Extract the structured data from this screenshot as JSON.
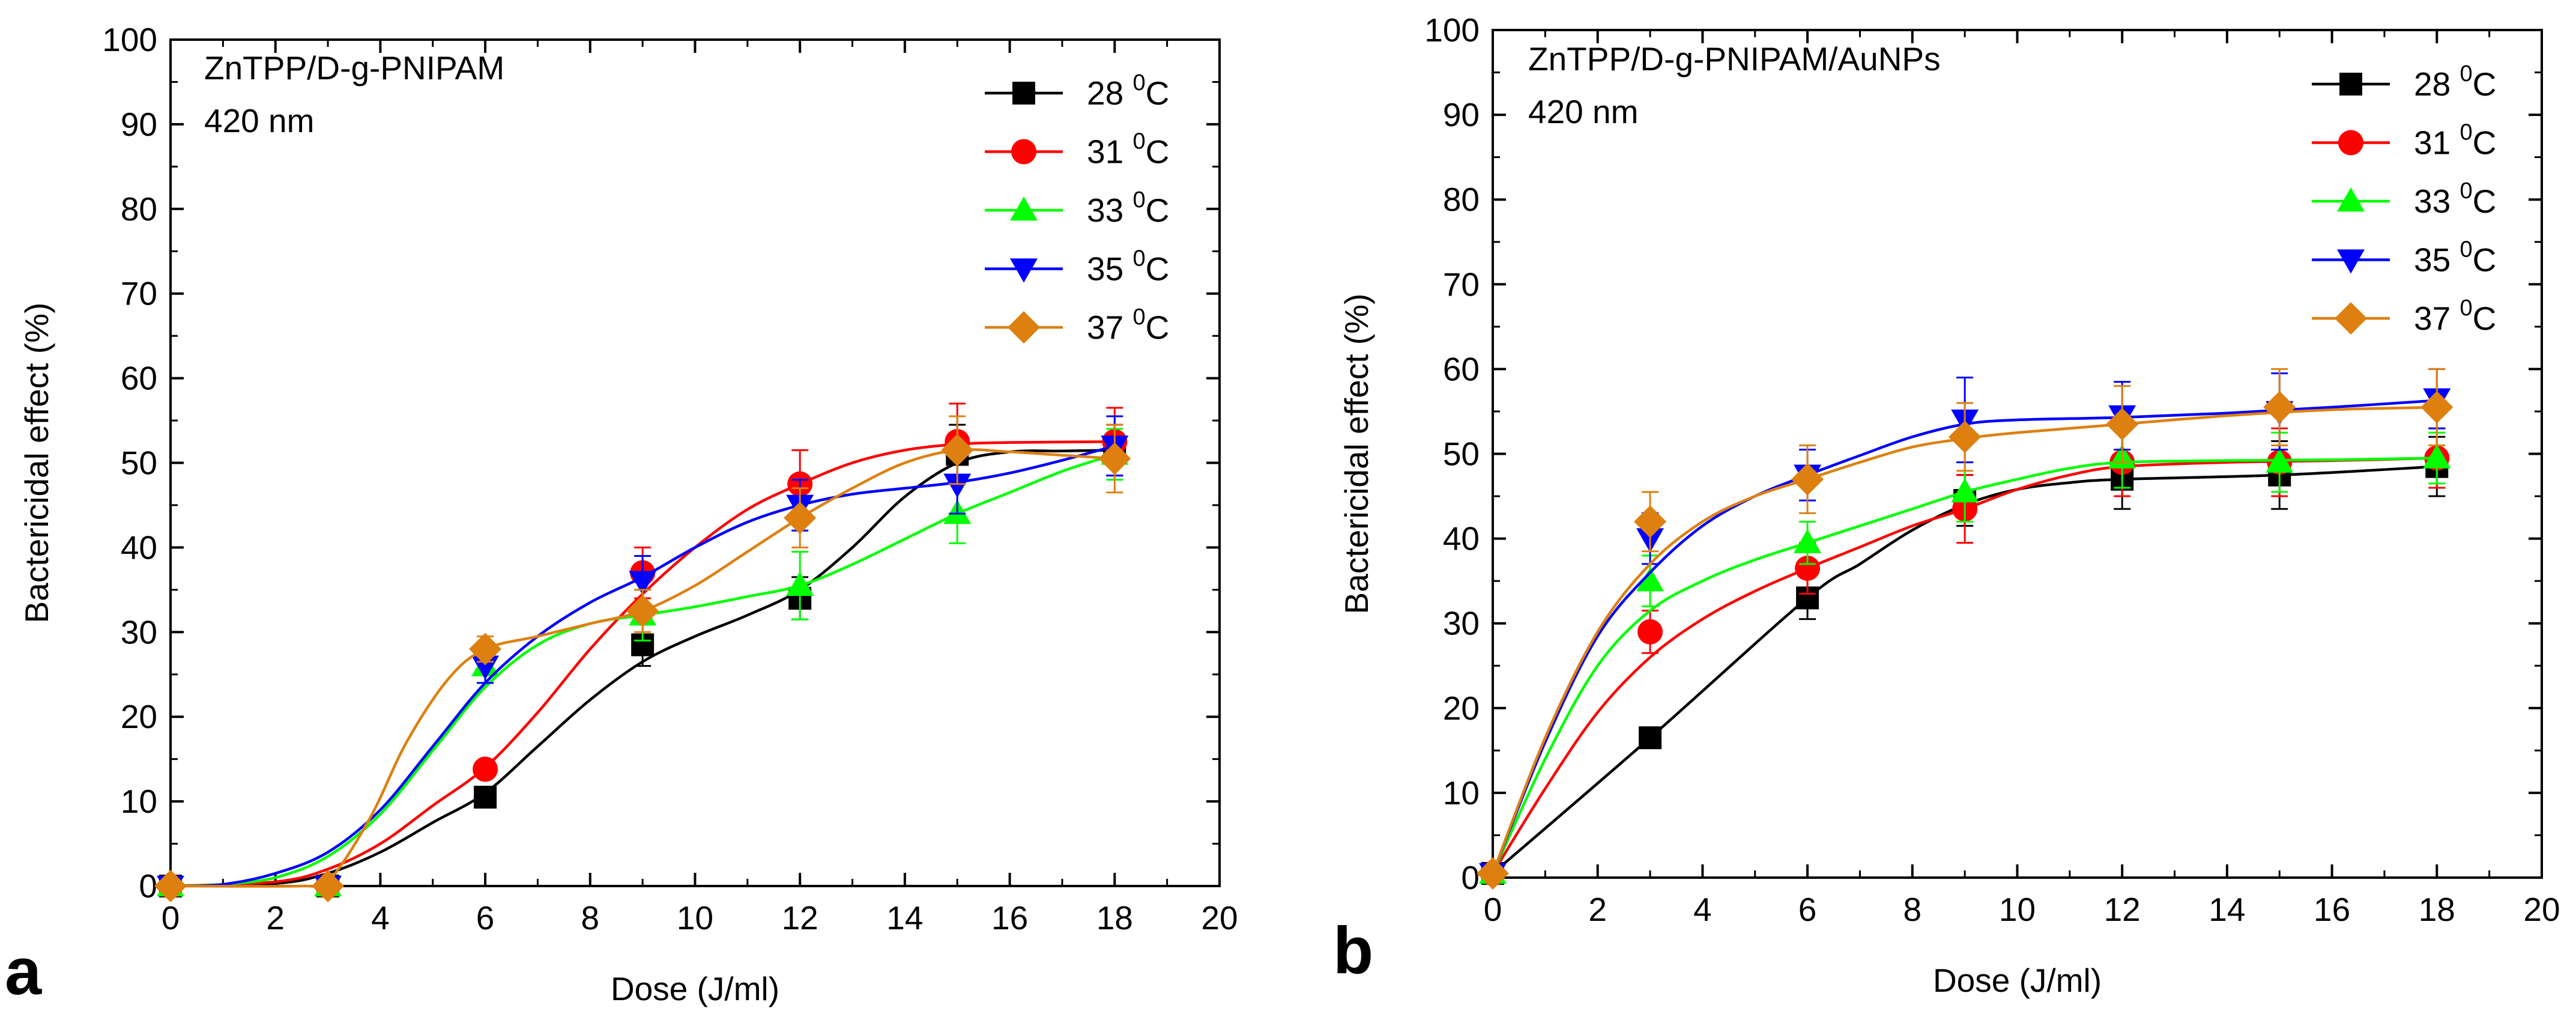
{
  "chart_data": [
    {
      "type": "line",
      "panel_label": "a",
      "annotation_lines": [
        "ZnTPP/D-g-PNIPAM",
        "420 nm"
      ],
      "xlabel": "Dose (J/ml)",
      "ylabel": "Bactericidal effect (%)",
      "xlim": [
        0,
        20
      ],
      "ylim": [
        0,
        100
      ],
      "xticks": [
        0,
        2,
        4,
        6,
        8,
        10,
        12,
        14,
        16,
        18,
        20
      ],
      "yticks": [
        0,
        10,
        20,
        30,
        40,
        50,
        60,
        70,
        80,
        90,
        100
      ],
      "x": [
        0,
        3,
        6,
        9,
        12,
        15,
        18
      ],
      "legend_position": "top-right",
      "series": [
        {
          "name": "28 ⁰C",
          "label_main": "28 ",
          "label_sup": "0",
          "label_unit": "C",
          "color": "#000000",
          "marker": "square",
          "values": [
            0,
            0,
            10.5,
            28.5,
            34,
            51,
            51.5
          ],
          "errors": [
            0,
            0,
            1,
            2.5,
            2.5,
            3.5,
            3
          ],
          "curve": [
            [
              0,
              0
            ],
            [
              2,
              0.3
            ],
            [
              3,
              1.5
            ],
            [
              4,
              4
            ],
            [
              5,
              7.5
            ],
            [
              6,
              11
            ],
            [
              7,
              16.5
            ],
            [
              8,
              22
            ],
            [
              9,
              26.5
            ],
            [
              10,
              29.5
            ],
            [
              11,
              32
            ],
            [
              12,
              35
            ],
            [
              13,
              40
            ],
            [
              14,
              46
            ],
            [
              15,
              50
            ],
            [
              16,
              51.3
            ],
            [
              17,
              51.4
            ],
            [
              18,
              51.5
            ]
          ]
        },
        {
          "name": "31 ⁰C",
          "label_main": "31 ",
          "label_sup": "0",
          "label_unit": "C",
          "color": "#ff0000",
          "marker": "circle",
          "values": [
            0,
            0,
            13.8,
            37,
            47.5,
            52.5,
            52.5
          ],
          "errors": [
            0,
            0,
            1,
            3,
            4,
            4.5,
            4
          ],
          "curve": [
            [
              0,
              0
            ],
            [
              2,
              0.5
            ],
            [
              3,
              2
            ],
            [
              4,
              5
            ],
            [
              5,
              9.5
            ],
            [
              6,
              14
            ],
            [
              7,
              20.5
            ],
            [
              8,
              28
            ],
            [
              9,
              34.5
            ],
            [
              10,
              40
            ],
            [
              11,
              44.5
            ],
            [
              12,
              47.5
            ],
            [
              13,
              50
            ],
            [
              14,
              51.5
            ],
            [
              15,
              52.2
            ],
            [
              16,
              52.4
            ],
            [
              18,
              52.5
            ]
          ]
        },
        {
          "name": "33 ⁰C",
          "label_main": "33 ",
          "label_sup": "0",
          "label_unit": "C",
          "color": "#00ff00",
          "marker": "triangle-up",
          "values": [
            0,
            0,
            26,
            32,
            35.5,
            44,
            51
          ],
          "errors": [
            0,
            0,
            2,
            3,
            4,
            3.5,
            3
          ],
          "curve": [
            [
              0,
              0
            ],
            [
              1,
              0.2
            ],
            [
              2,
              1
            ],
            [
              3,
              3.5
            ],
            [
              4,
              8.5
            ],
            [
              5,
              16
            ],
            [
              6,
              23.5
            ],
            [
              7,
              28.5
            ],
            [
              8,
              31
            ],
            [
              9,
              32
            ],
            [
              10,
              33
            ],
            [
              11,
              34.2
            ],
            [
              12,
              35.5
            ],
            [
              13,
              38
            ],
            [
              14,
              41
            ],
            [
              15,
              44
            ],
            [
              16,
              46.5
            ],
            [
              17,
              49
            ],
            [
              18,
              51
            ]
          ]
        },
        {
          "name": "35 ⁰C",
          "label_main": "35 ",
          "label_sup": "0",
          "label_unit": "C",
          "color": "#0000ff",
          "marker": "triangle-down",
          "values": [
            0,
            0,
            26,
            36,
            45,
            47.5,
            52
          ],
          "errors": [
            0,
            0,
            2,
            3,
            3,
            3.5,
            3.5
          ],
          "curve": [
            [
              0,
              0
            ],
            [
              1,
              0.2
            ],
            [
              2,
              1.5
            ],
            [
              3,
              4
            ],
            [
              4,
              9
            ],
            [
              5,
              16.5
            ],
            [
              6,
              24
            ],
            [
              7,
              29.5
            ],
            [
              8,
              33.5
            ],
            [
              9,
              36.5
            ],
            [
              10,
              40
            ],
            [
              11,
              43
            ],
            [
              12,
              45
            ],
            [
              13,
              46.3
            ],
            [
              14,
              47
            ],
            [
              15,
              47.7
            ],
            [
              16,
              48.8
            ],
            [
              17,
              50.3
            ],
            [
              18,
              52
            ]
          ]
        },
        {
          "name": "37 ⁰C",
          "label_main": "37 ",
          "label_sup": "0",
          "label_unit": "C",
          "color": "#dd8010",
          "marker": "diamond",
          "values": [
            0,
            0,
            28,
            32.5,
            43.5,
            51.5,
            50.5
          ],
          "errors": [
            0,
            0,
            1.5,
            2.5,
            3.5,
            4,
            4
          ],
          "curve": [
            [
              0,
              0
            ],
            [
              2.5,
              0
            ],
            [
              3,
              0.5
            ],
            [
              3.8,
              8
            ],
            [
              4.5,
              17
            ],
            [
              5.3,
              24.5
            ],
            [
              6,
              28
            ],
            [
              7,
              29.5
            ],
            [
              8,
              31
            ],
            [
              9,
              32.5
            ],
            [
              10,
              35.5
            ],
            [
              11,
              39.5
            ],
            [
              12,
              43.5
            ],
            [
              13,
              47
            ],
            [
              14,
              50
            ],
            [
              15,
              51.5
            ],
            [
              16,
              51.3
            ],
            [
              17,
              50.9
            ],
            [
              18,
              50.5
            ]
          ]
        }
      ]
    },
    {
      "type": "line",
      "panel_label": "b",
      "annotation_lines": [
        "ZnTPP/D-g-PNIPAM/AuNPs",
        "420 nm"
      ],
      "xlabel": "Dose (J/ml)",
      "ylabel": "Bactericidal effect (%)",
      "xlim": [
        0,
        20
      ],
      "ylim": [
        0,
        100
      ],
      "xticks": [
        0,
        2,
        4,
        6,
        8,
        10,
        12,
        14,
        16,
        18,
        20
      ],
      "yticks": [
        0,
        10,
        20,
        30,
        40,
        50,
        60,
        70,
        80,
        90,
        100
      ],
      "x": [
        0,
        3,
        6,
        9,
        12,
        15,
        18
      ],
      "legend_position": "top-right",
      "series": [
        {
          "name": "28 ⁰C",
          "label_main": "28 ",
          "label_sup": "0",
          "label_unit": "C",
          "color": "#000000",
          "marker": "square",
          "values": [
            0.5,
            16.5,
            33,
            44.5,
            47,
            47.5,
            48.5
          ],
          "errors": [
            0,
            1,
            2.5,
            3,
            3.5,
            4,
            3.5
          ],
          "curve": [
            [
              0,
              0.5
            ],
            [
              3,
              16.5
            ],
            [
              6,
              33
            ],
            [
              7,
              37
            ],
            [
              8,
              41
            ],
            [
              9,
              44
            ],
            [
              10,
              45.8
            ],
            [
              11,
              46.6
            ],
            [
              12,
              47
            ],
            [
              15,
              47.5
            ],
            [
              18,
              48.5
            ]
          ]
        },
        {
          "name": "31 ⁰C",
          "label_main": "31 ",
          "label_sup": "0",
          "label_unit": "C",
          "color": "#ff0000",
          "marker": "circle",
          "values": [
            0.5,
            29,
            36.5,
            43.5,
            49,
            49,
            49.5
          ],
          "errors": [
            0,
            2.5,
            3,
            4,
            4,
            4,
            3.5
          ],
          "curve": [
            [
              0,
              0.5
            ],
            [
              1,
              10.5
            ],
            [
              2,
              19.5
            ],
            [
              3,
              26
            ],
            [
              4,
              30.5
            ],
            [
              5,
              33.8
            ],
            [
              6,
              36.5
            ],
            [
              7,
              39
            ],
            [
              8,
              41.5
            ],
            [
              9,
              43.5
            ],
            [
              10,
              45.8
            ],
            [
              11,
              47.5
            ],
            [
              12,
              48.5
            ],
            [
              14,
              49
            ],
            [
              16,
              49.2
            ],
            [
              18,
              49.5
            ]
          ]
        },
        {
          "name": "33 ⁰C",
          "label_main": "33 ",
          "label_sup": "0",
          "label_unit": "C",
          "color": "#00ff00",
          "marker": "triangle-up",
          "values": [
            0.5,
            35,
            39.5,
            45.5,
            49.5,
            49,
            49.5
          ],
          "errors": [
            0,
            3,
            2.5,
            3.5,
            3.5,
            3.5,
            3
          ],
          "curve": [
            [
              0,
              0.5
            ],
            [
              1,
              14
            ],
            [
              2,
              25
            ],
            [
              3,
              31.5
            ],
            [
              4,
              35
            ],
            [
              5,
              37.5
            ],
            [
              6,
              39.5
            ],
            [
              7,
              41.5
            ],
            [
              8,
              43.5
            ],
            [
              9,
              45.5
            ],
            [
              10,
              47
            ],
            [
              11,
              48.3
            ],
            [
              12,
              49
            ],
            [
              14,
              49.2
            ],
            [
              16,
              49.3
            ],
            [
              18,
              49.5
            ]
          ]
        },
        {
          "name": "35 ⁰C",
          "label_main": "35 ",
          "label_sup": "0",
          "label_unit": "C",
          "color": "#0000ff",
          "marker": "triangle-down",
          "values": [
            0.5,
            40,
            47.5,
            54,
            54.5,
            55,
            56.5
          ],
          "errors": [
            0,
            3,
            3,
            5,
            4,
            4.5,
            3.5
          ],
          "curve": [
            [
              0,
              0.5
            ],
            [
              1,
              16
            ],
            [
              2,
              28.5
            ],
            [
              3,
              36
            ],
            [
              4,
              41.5
            ],
            [
              5,
              45
            ],
            [
              6,
              47.5
            ],
            [
              7,
              49.8
            ],
            [
              8,
              52
            ],
            [
              9,
              53.5
            ],
            [
              10,
              54
            ],
            [
              12,
              54.3
            ],
            [
              14,
              54.8
            ],
            [
              16,
              55.5
            ],
            [
              18,
              56.3
            ]
          ]
        },
        {
          "name": "37 ⁰C",
          "label_main": "37 ",
          "label_sup": "0",
          "label_unit": "C",
          "color": "#dd8010",
          "marker": "diamond",
          "values": [
            0.5,
            42,
            47,
            52,
            53.5,
            55.5,
            55.5
          ],
          "errors": [
            0,
            3.5,
            4,
            4,
            4.5,
            4.5,
            4.5
          ],
          "curve": [
            [
              0,
              0.5
            ],
            [
              1,
              16.5
            ],
            [
              2,
              29
            ],
            [
              3,
              37
            ],
            [
              4,
              42
            ],
            [
              5,
              45
            ],
            [
              6,
              47
            ],
            [
              7,
              49
            ],
            [
              8,
              50.8
            ],
            [
              9,
              51.8
            ],
            [
              10,
              52.5
            ],
            [
              12,
              53.5
            ],
            [
              14,
              54.5
            ],
            [
              16,
              55.2
            ],
            [
              18,
              55.5
            ]
          ]
        }
      ]
    }
  ]
}
